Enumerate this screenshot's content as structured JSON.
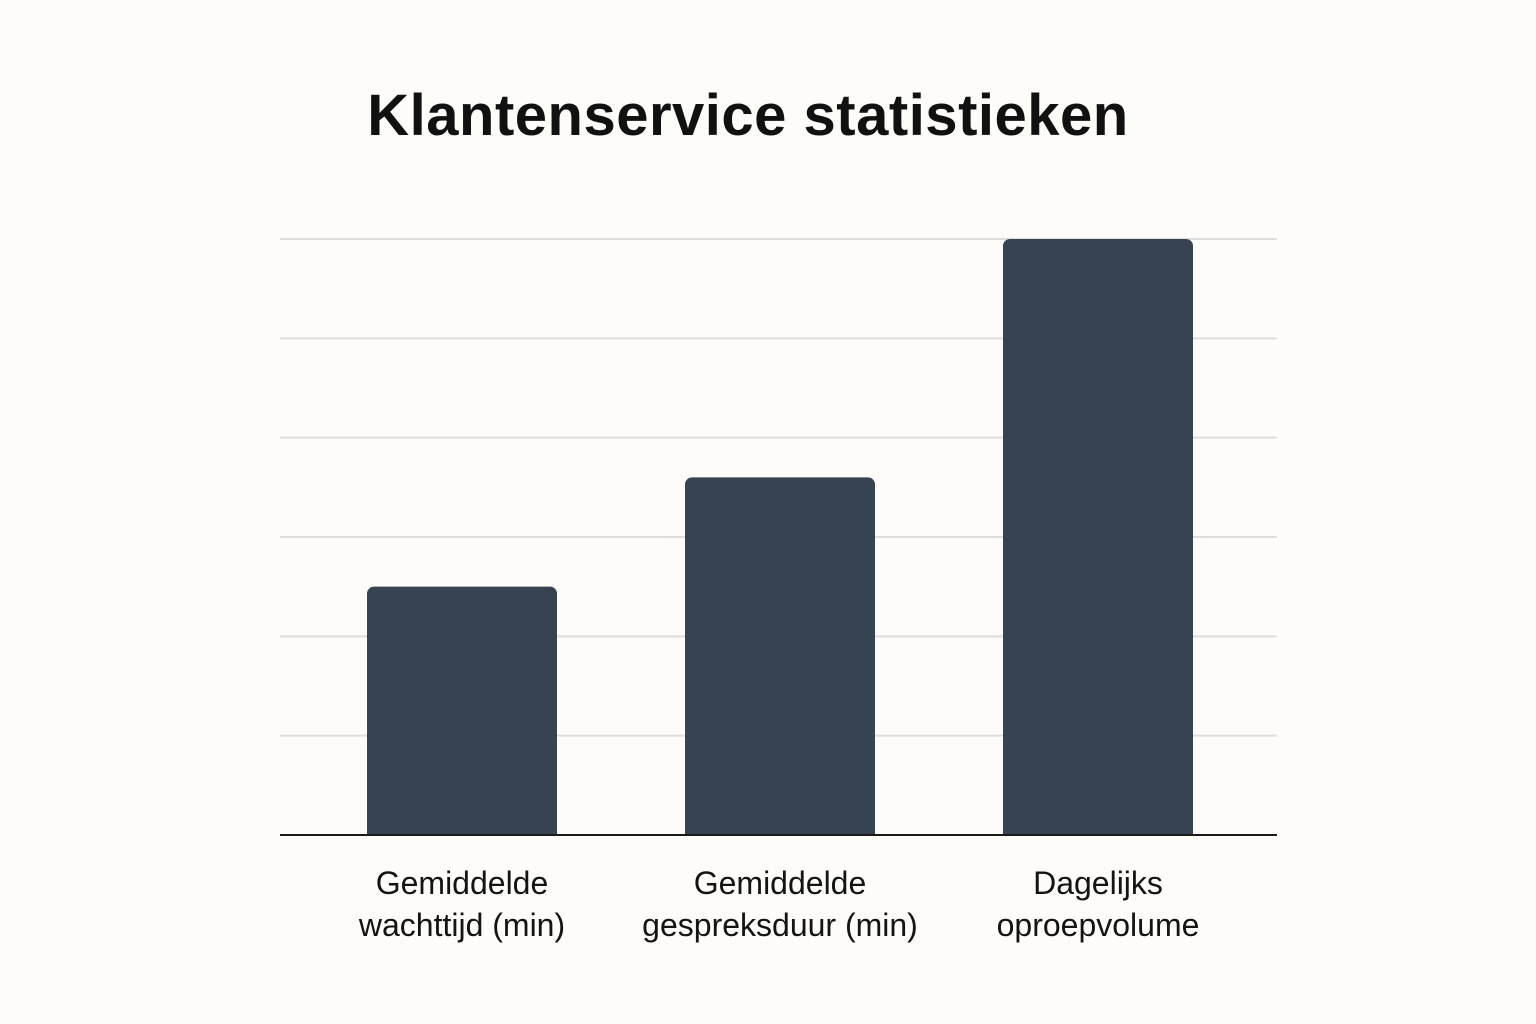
{
  "chart_data": {
    "type": "bar",
    "title": "Klantenservice statistieken",
    "xlabel": "",
    "ylabel": "",
    "categories": [
      [
        "Gemiddelde",
        "wachttijd (min)"
      ],
      [
        "Gemiddelde",
        "gespreksduur (min)"
      ],
      [
        "Dagelijks",
        "oproepvolume"
      ]
    ],
    "values": [
      2.5,
      3.6,
      6.0
    ],
    "ylim": [
      0,
      6
    ],
    "yticks": [
      0,
      1,
      2,
      3,
      4,
      5,
      6
    ],
    "ytick_labels_shown": false,
    "grid": true,
    "legend": "none",
    "colors": {
      "bar": "#384351",
      "grid": "#dddddd",
      "axis": "#1a1a1a",
      "background": "#fdfcf8"
    }
  }
}
